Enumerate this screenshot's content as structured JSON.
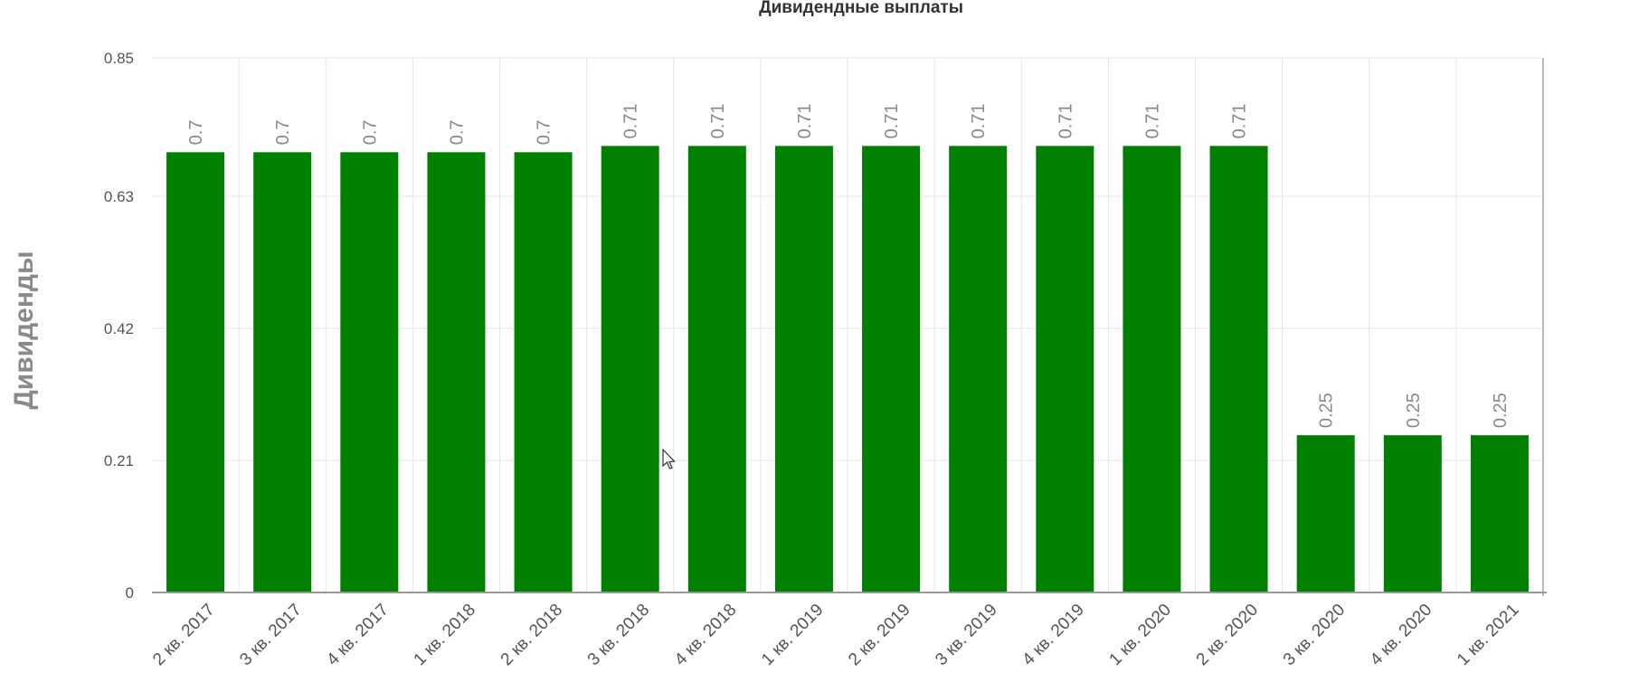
{
  "chart_data": {
    "type": "bar",
    "title": "Дивидендные выплаты",
    "xlabel": "",
    "ylabel": "Дивиденды",
    "ylim": [
      0,
      0.85
    ],
    "y_ticks": [
      "0",
      "0.21",
      "0.42",
      "0.63",
      "0.85"
    ],
    "grid": true,
    "categories": [
      "2 кв. 2017",
      "3 кв. 2017",
      "4 кв. 2017",
      "1 кв. 2018",
      "2 кв. 2018",
      "3 кв. 2018",
      "4 кв. 2018",
      "1 кв. 2019",
      "2 кв. 2019",
      "3 кв. 2019",
      "4 кв. 2019",
      "1 кв. 2020",
      "2 кв. 2020",
      "3 кв. 2020",
      "4 кв. 2020",
      "1 кв. 2021"
    ],
    "values": [
      0.7,
      0.7,
      0.7,
      0.7,
      0.7,
      0.71,
      0.71,
      0.71,
      0.71,
      0.71,
      0.71,
      0.71,
      0.71,
      0.25,
      0.25,
      0.25
    ],
    "data_labels": [
      "0.7",
      "0.7",
      "0.7",
      "0.7",
      "0.7",
      "0.71",
      "0.71",
      "0.71",
      "0.71",
      "0.71",
      "0.71",
      "0.71",
      "0.71",
      "0.25",
      "0.25",
      "0.25"
    ],
    "bar_color": "#008000"
  }
}
